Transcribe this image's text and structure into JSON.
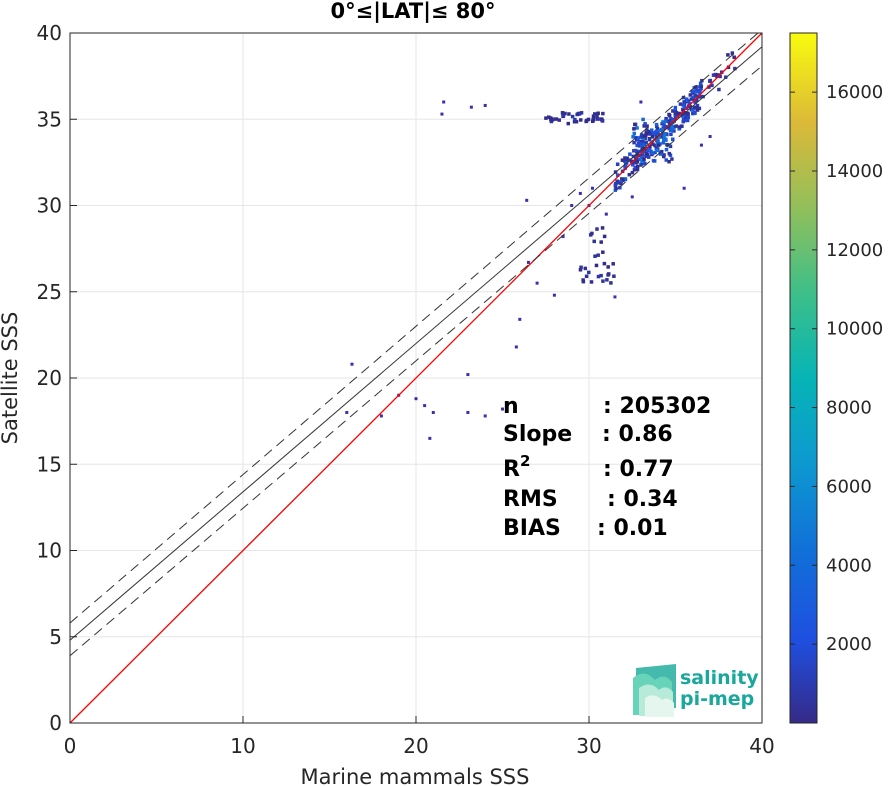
{
  "chart_data": {
    "type": "heatmap",
    "title": "0°≤|LAT|≤ 80°",
    "xlabel": "Marine mammals SSS",
    "ylabel": "Satellite SSS",
    "xlim": [
      0,
      40
    ],
    "ylim": [
      0,
      40
    ],
    "xticks": [
      "0",
      "10",
      "20",
      "30",
      "40"
    ],
    "yticks": [
      "0",
      "5",
      "10",
      "15",
      "20",
      "25",
      "30",
      "35",
      "40"
    ],
    "grid": true,
    "colorbar": {
      "colormap": "parula",
      "range": [
        0,
        17500
      ],
      "ticks": [
        "2000",
        "4000",
        "6000",
        "8000",
        "10000",
        "12000",
        "14000",
        "16000"
      ],
      "tick_values": [
        2000,
        4000,
        6000,
        8000,
        10000,
        12000,
        14000,
        16000
      ]
    },
    "lines": [
      {
        "name": "identity",
        "color": "#ff0000",
        "style": "solid",
        "points": [
          [
            0,
            0
          ],
          [
            40,
            40
          ]
        ]
      },
      {
        "name": "fit",
        "color": "#333333",
        "style": "solid",
        "points": [
          [
            0,
            4.8
          ],
          [
            40,
            39.2
          ]
        ]
      },
      {
        "name": "fit-upper",
        "color": "#333333",
        "style": "dashed",
        "points": [
          [
            0,
            5.8
          ],
          [
            40,
            40.2
          ]
        ]
      },
      {
        "name": "fit-lower",
        "color": "#333333",
        "style": "dashed",
        "points": [
          [
            0,
            3.9
          ],
          [
            40,
            38.1
          ]
        ]
      }
    ],
    "density_clusters": [
      {
        "x_range": [
          31.5,
          36.5
        ],
        "y_range": [
          31.5,
          36.5
        ],
        "along_diagonal": true,
        "count": 220,
        "peak": 3500
      },
      {
        "x_range": [
          32.5,
          35
        ],
        "y_range": [
          32.5,
          35
        ],
        "along_diagonal": false,
        "count": 90,
        "peak": 5200
      },
      {
        "x_range": [
          36,
          38.5
        ],
        "y_range": [
          36,
          38.5
        ],
        "along_diagonal": true,
        "count": 25,
        "peak": 1500
      },
      {
        "x_range": [
          27.5,
          31
        ],
        "y_range": [
          34.7,
          35.4
        ],
        "along_diagonal": false,
        "count": 45,
        "peak": 900
      },
      {
        "x_range": [
          29.5,
          31.5
        ],
        "y_range": [
          25.5,
          27
        ],
        "along_diagonal": false,
        "count": 20,
        "peak": 800
      },
      {
        "x_range": [
          29.8,
          31
        ],
        "y_range": [
          27,
          28.8
        ],
        "along_diagonal": false,
        "count": 10,
        "peak": 700
      }
    ],
    "scatter_points": [
      [
        21.5,
        35.3
      ],
      [
        21.6,
        36.0
      ],
      [
        23.2,
        35.7
      ],
      [
        24.0,
        35.8
      ],
      [
        26.4,
        30.3
      ],
      [
        28.5,
        28.2
      ],
      [
        26.5,
        26.7
      ],
      [
        27.0,
        25.5
      ],
      [
        28.0,
        24.8
      ],
      [
        26.0,
        23.4
      ],
      [
        31.5,
        24.7
      ],
      [
        25.8,
        21.8
      ],
      [
        23.0,
        20.2
      ],
      [
        16.3,
        20.8
      ],
      [
        19.0,
        19.0
      ],
      [
        20.0,
        18.8
      ],
      [
        20.5,
        18.4
      ],
      [
        21.0,
        18.0
      ],
      [
        23.0,
        18.0
      ],
      [
        24.0,
        17.8
      ],
      [
        25.0,
        18.2
      ],
      [
        16.0,
        18.0
      ],
      [
        18.0,
        17.8
      ],
      [
        20.8,
        16.5
      ],
      [
        30.0,
        30.0
      ],
      [
        30.2,
        31.0
      ],
      [
        29.5,
        30.7
      ],
      [
        31.0,
        29.5
      ],
      [
        29.0,
        30.0
      ],
      [
        33.0,
        36.0
      ],
      [
        30.5,
        35.0
      ],
      [
        36.5,
        33.5
      ],
      [
        37.0,
        34.0
      ],
      [
        35.5,
        31.0
      ],
      [
        32.5,
        30.5
      ]
    ],
    "annotations": {
      "labels": [
        "n",
        "Slope",
        "RMS",
        "BIAS"
      ],
      "values": [
        ": 205302",
        ": 0.86",
        ": 0.77",
        ": 0.34",
        ": 0.01"
      ],
      "r_base": "R",
      "r_sup": "2"
    }
  },
  "logo": {
    "line1": "salinity",
    "line2": "pi-mep",
    "color": "#1aa79c"
  }
}
